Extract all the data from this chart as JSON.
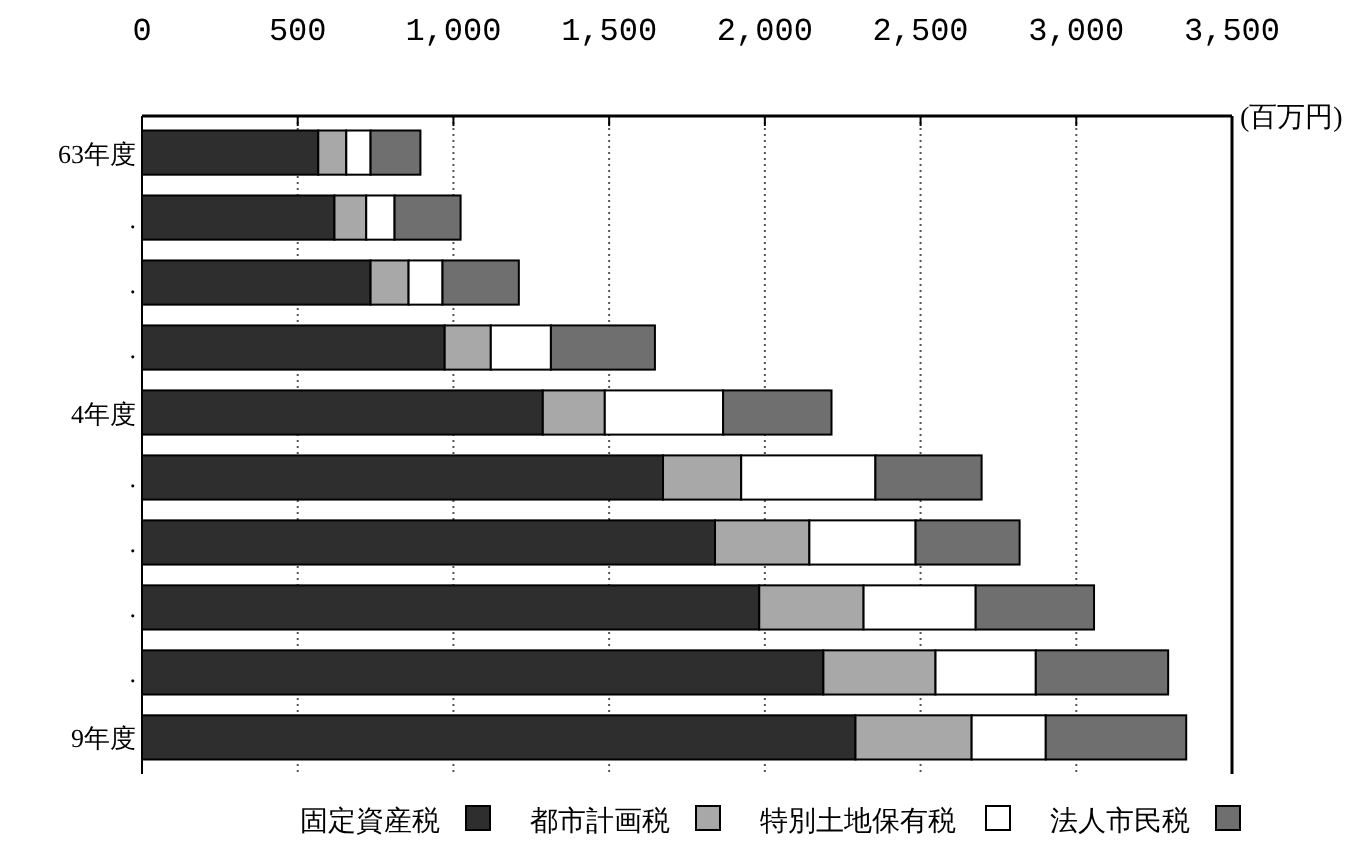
{
  "chart_data": {
    "type": "bar",
    "orientation": "horizontal",
    "stacked": true,
    "xlabel": "(百万円)",
    "categories": [
      "63年度",
      ".",
      ".",
      ".",
      "4年度",
      ".",
      ".",
      ".",
      ".",
      "9年度"
    ],
    "series": [
      {
        "name": "固定資産税",
        "color": "#2e2e2e",
        "values": [
          566,
          618,
          734,
          972,
          1287,
          1673,
          1840,
          1982,
          2188,
          2291
        ]
      },
      {
        "name": "都市計画税",
        "color": "#a8a8a8",
        "values": [
          90,
          102,
          122,
          148,
          199,
          251,
          303,
          335,
          360,
          373
        ]
      },
      {
        "name": "特別土地保有税",
        "color": "#ffffff",
        "values": [
          78,
          91,
          109,
          193,
          380,
          431,
          341,
          360,
          322,
          238
        ]
      },
      {
        "name": "法人市民税",
        "color": "#6f6f6f",
        "values": [
          160,
          212,
          245,
          334,
          348,
          341,
          334,
          380,
          425,
          451
        ]
      }
    ],
    "xlim": [
      0,
      3500
    ],
    "xticks": [
      0,
      500,
      {
        "value": 1000,
        "label": "1,000"
      },
      {
        "value": 1500,
        "label": "1,500"
      },
      {
        "value": 2000,
        "label": "2,000"
      },
      {
        "value": 2500,
        "label": "2,500"
      },
      {
        "value": 3000,
        "label": "3,000"
      },
      {
        "value": 3500,
        "label": "3,500"
      }
    ],
    "grid": "x",
    "legend": "bottom"
  }
}
